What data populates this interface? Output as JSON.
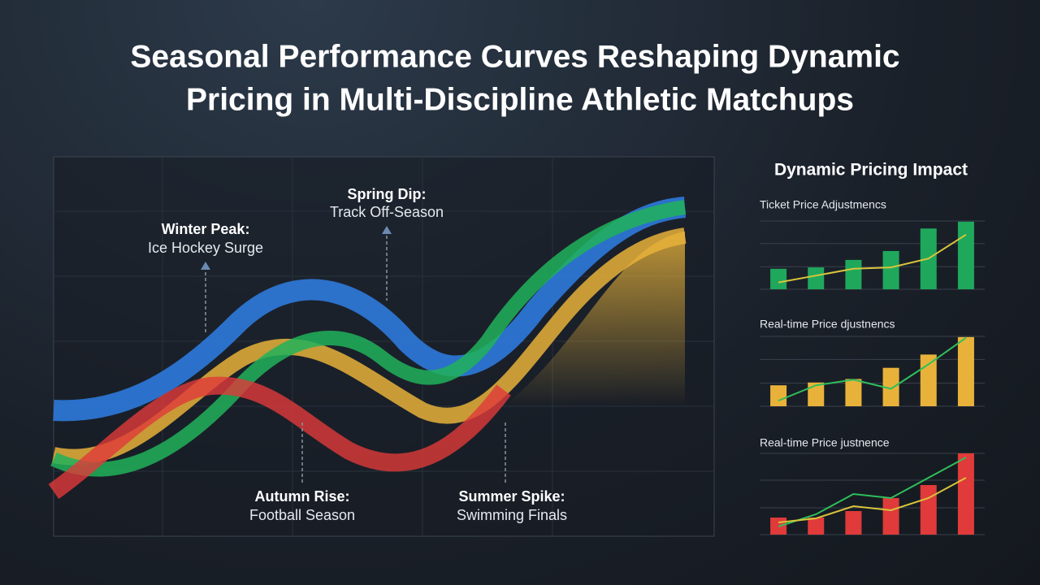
{
  "title_lines": [
    "Seasonal Performance Curves Reshaping Dynamic",
    "Pricing in Multi-Discipline Athletic Matchups"
  ],
  "main_panel": {
    "annotations": [
      {
        "heading": "Winter Peak:",
        "text": "Ice Hockey Surge"
      },
      {
        "heading": "Spring Dip:",
        "text": "Track Off-Season"
      },
      {
        "heading": "Autumn Rise:",
        "text": "Football Season"
      },
      {
        "heading": "Summer Spike:",
        "text": "Swimming Finals"
      }
    ]
  },
  "side_panel_title": "Dynamic Pricing Impact",
  "chart_data": [
    {
      "type": "bar",
      "title": "Ticket Price Adjustmencs",
      "categories": [
        null,
        null,
        null,
        null,
        null,
        null
      ],
      "ylim": [
        0,
        100
      ],
      "yticks": [
        0,
        33,
        67,
        100
      ],
      "grid": true,
      "series": [
        {
          "type": "bar",
          "color": "#1fa85c",
          "values": [
            30,
            32,
            43,
            56,
            89,
            99
          ]
        },
        {
          "type": "line",
          "color": "#d9c53a",
          "values": [
            10,
            20,
            30,
            32,
            45,
            80
          ]
        }
      ]
    },
    {
      "type": "bar",
      "title": "Real-time Price djustnencs",
      "categories": [
        null,
        null,
        null,
        null,
        null,
        null
      ],
      "ylim": [
        0,
        100
      ],
      "yticks": [
        0,
        33,
        67,
        100
      ],
      "grid": true,
      "series": [
        {
          "type": "bar",
          "color": "#e8b23a",
          "values": [
            30,
            34,
            39,
            55,
            74,
            99
          ]
        },
        {
          "type": "line",
          "color": "#2fbf5a",
          "values": [
            8,
            30,
            38,
            25,
            60,
            98
          ]
        }
      ]
    },
    {
      "type": "bar",
      "title": "Real-time Price justnence",
      "categories": [
        null,
        null,
        null,
        null,
        null,
        null
      ],
      "ylim": [
        0,
        100
      ],
      "yticks": [
        0,
        33,
        67,
        100
      ],
      "grid": true,
      "series": [
        {
          "type": "bar",
          "color": "#e03a3a",
          "values": [
            21,
            21,
            29,
            45,
            61,
            100
          ]
        },
        {
          "type": "line",
          "color": "#2fbf5a",
          "values": [
            10,
            25,
            50,
            45,
            70,
            95
          ]
        },
        {
          "type": "line",
          "color": "#d9c53a",
          "values": [
            15,
            20,
            35,
            30,
            45,
            70
          ]
        }
      ]
    }
  ]
}
